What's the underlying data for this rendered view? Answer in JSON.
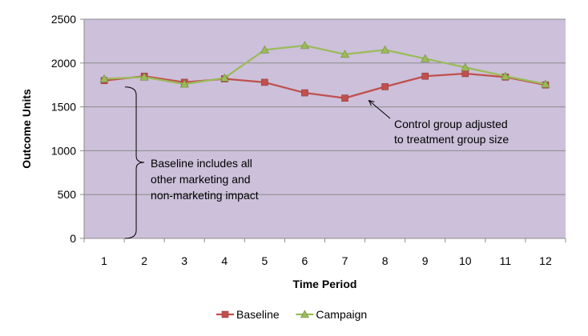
{
  "chart_data": {
    "type": "line",
    "title": "",
    "xlabel": "Time Period",
    "ylabel": "Outcome Units",
    "x": [
      1,
      2,
      3,
      4,
      5,
      6,
      7,
      8,
      9,
      10,
      11,
      12
    ],
    "x_tick_labels": [
      "1",
      "2",
      "3",
      "4",
      "5",
      "6",
      "7",
      "8",
      "9",
      "10",
      "11",
      "12"
    ],
    "ylim": [
      0,
      2500
    ],
    "y_ticks": [
      0,
      500,
      1000,
      1500,
      2000,
      2500
    ],
    "y_tick_labels": [
      "0",
      "500",
      "1000",
      "1500",
      "2000",
      "2500"
    ],
    "grid": "horizontal",
    "legend_position": "bottom",
    "plot_background": "#ccc0da",
    "series": [
      {
        "name": "Baseline",
        "marker": "square",
        "color": "#c0504d",
        "marker_color": "#c0504d",
        "values": [
          1800,
          1850,
          1780,
          1820,
          1780,
          1660,
          1600,
          1730,
          1850,
          1880,
          1840,
          1750
        ]
      },
      {
        "name": "Campaign",
        "marker": "triangle",
        "color": "#9bbb59",
        "marker_color": "#9bbb59",
        "values": [
          1820,
          1840,
          1760,
          1830,
          2150,
          2200,
          2100,
          2150,
          2050,
          1950,
          1850,
          1760
        ]
      }
    ],
    "annotations": [
      {
        "id": "control-group-note",
        "lines": [
          "Control group adjusted",
          "to treatment group size"
        ],
        "points_to": {
          "series": "Baseline",
          "x": 7,
          "y": 1600
        }
      },
      {
        "id": "baseline-note",
        "lines": [
          "Baseline includes all",
          "other marketing and",
          "non-marketing impact"
        ],
        "brace_range": [
          0,
          1800
        ],
        "brace_at_x": 1
      }
    ]
  }
}
